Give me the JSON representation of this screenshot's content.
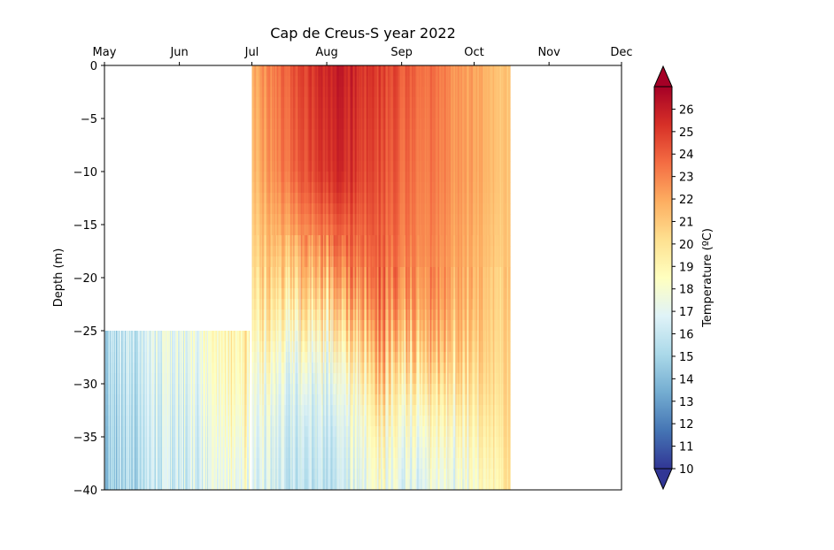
{
  "chart_data": {
    "type": "heatmap",
    "title": "Cap de Creus-S year 2022",
    "ylabel": "Depth (m)",
    "xlabel": "",
    "x_ticks": [
      "May",
      "Jun",
      "Jul",
      "Aug",
      "Sep",
      "Oct",
      "Nov",
      "Dec"
    ],
    "x_range_months": [
      5,
      12
    ],
    "y_ticks": [
      0,
      -5,
      -10,
      -15,
      -20,
      -25,
      -30,
      -35,
      -40
    ],
    "ylim": [
      -40,
      0
    ],
    "grid": false,
    "colorbar": {
      "label": "Temperature (ºC)",
      "min": 10,
      "max": 27,
      "ticks": [
        10,
        11,
        12,
        13,
        14,
        15,
        16,
        17,
        18,
        19,
        20,
        21,
        22,
        23,
        24,
        25,
        26
      ],
      "colormap": [
        "#313695",
        "#4575b4",
        "#74add1",
        "#abd9e9",
        "#e0f3f8",
        "#ffffbf",
        "#fee090",
        "#fdae61",
        "#f46d43",
        "#d73027",
        "#a50026"
      ],
      "extend": "both"
    },
    "data_segments": [
      {
        "period": "May–Jun (≈ May 1 – Jun 30)",
        "depth_range_m": [
          -40,
          -25
        ],
        "temperature_range": [
          14,
          20
        ]
      },
      {
        "period": "Jul – mid Oct (≈ Jul 1 – Oct 16)",
        "depth_range_m": [
          -40,
          0
        ],
        "temperature_range": [
          14,
          26.5
        ]
      }
    ],
    "temperature_profiles": [
      {
        "date": "2022-05-01",
        "depths": [
          -25,
          -30,
          -35,
          -40
        ],
        "temps": [
          15.5,
          15.0,
          14.8,
          14.5
        ]
      },
      {
        "date": "2022-05-20",
        "depths": [
          -25,
          -30,
          -35,
          -40
        ],
        "temps": [
          16.5,
          16.0,
          15.8,
          15.5
        ]
      },
      {
        "date": "2022-06-10",
        "depths": [
          -25,
          -30,
          -35,
          -40
        ],
        "temps": [
          18.0,
          17.5,
          17.0,
          16.8
        ]
      },
      {
        "date": "2022-06-28",
        "depths": [
          -25,
          -30,
          -35,
          -40
        ],
        "temps": [
          19.5,
          19.0,
          18.0,
          17.5
        ]
      },
      {
        "date": "2022-07-01",
        "depths": [
          0,
          -10,
          -20,
          -25,
          -30,
          -40
        ],
        "temps": [
          22.0,
          21.5,
          20.5,
          19.5,
          18.0,
          17.0
        ]
      },
      {
        "date": "2022-07-20",
        "depths": [
          0,
          -10,
          -20,
          -25,
          -30,
          -40
        ],
        "temps": [
          24.5,
          24.0,
          21.0,
          18.5,
          16.5,
          15.5
        ]
      },
      {
        "date": "2022-08-05",
        "depths": [
          0,
          -10,
          -20,
          -25,
          -30,
          -40
        ],
        "temps": [
          26.0,
          25.5,
          22.0,
          18.5,
          16.5,
          15.5
        ]
      },
      {
        "date": "2022-08-20",
        "depths": [
          0,
          -10,
          -20,
          -25,
          -30,
          -40
        ],
        "temps": [
          25.0,
          24.5,
          23.5,
          22.0,
          19.5,
          17.5
        ]
      },
      {
        "date": "2022-09-05",
        "depths": [
          0,
          -10,
          -20,
          -25,
          -30,
          -40
        ],
        "temps": [
          24.0,
          23.5,
          23.0,
          22.0,
          19.0,
          16.5
        ]
      },
      {
        "date": "2022-09-25",
        "depths": [
          0,
          -10,
          -20,
          -25,
          -30,
          -40
        ],
        "temps": [
          22.5,
          22.5,
          22.0,
          21.5,
          19.5,
          17.0
        ]
      },
      {
        "date": "2022-10-10",
        "depths": [
          0,
          -10,
          -20,
          -25,
          -30,
          -40
        ],
        "temps": [
          21.5,
          21.5,
          21.0,
          21.0,
          20.5,
          19.0
        ]
      },
      {
        "date": "2022-10-16",
        "depths": [
          0,
          -10,
          -20,
          -25,
          -30,
          -40
        ],
        "temps": [
          21.0,
          21.0,
          21.0,
          20.5,
          20.5,
          20.0
        ]
      }
    ]
  }
}
